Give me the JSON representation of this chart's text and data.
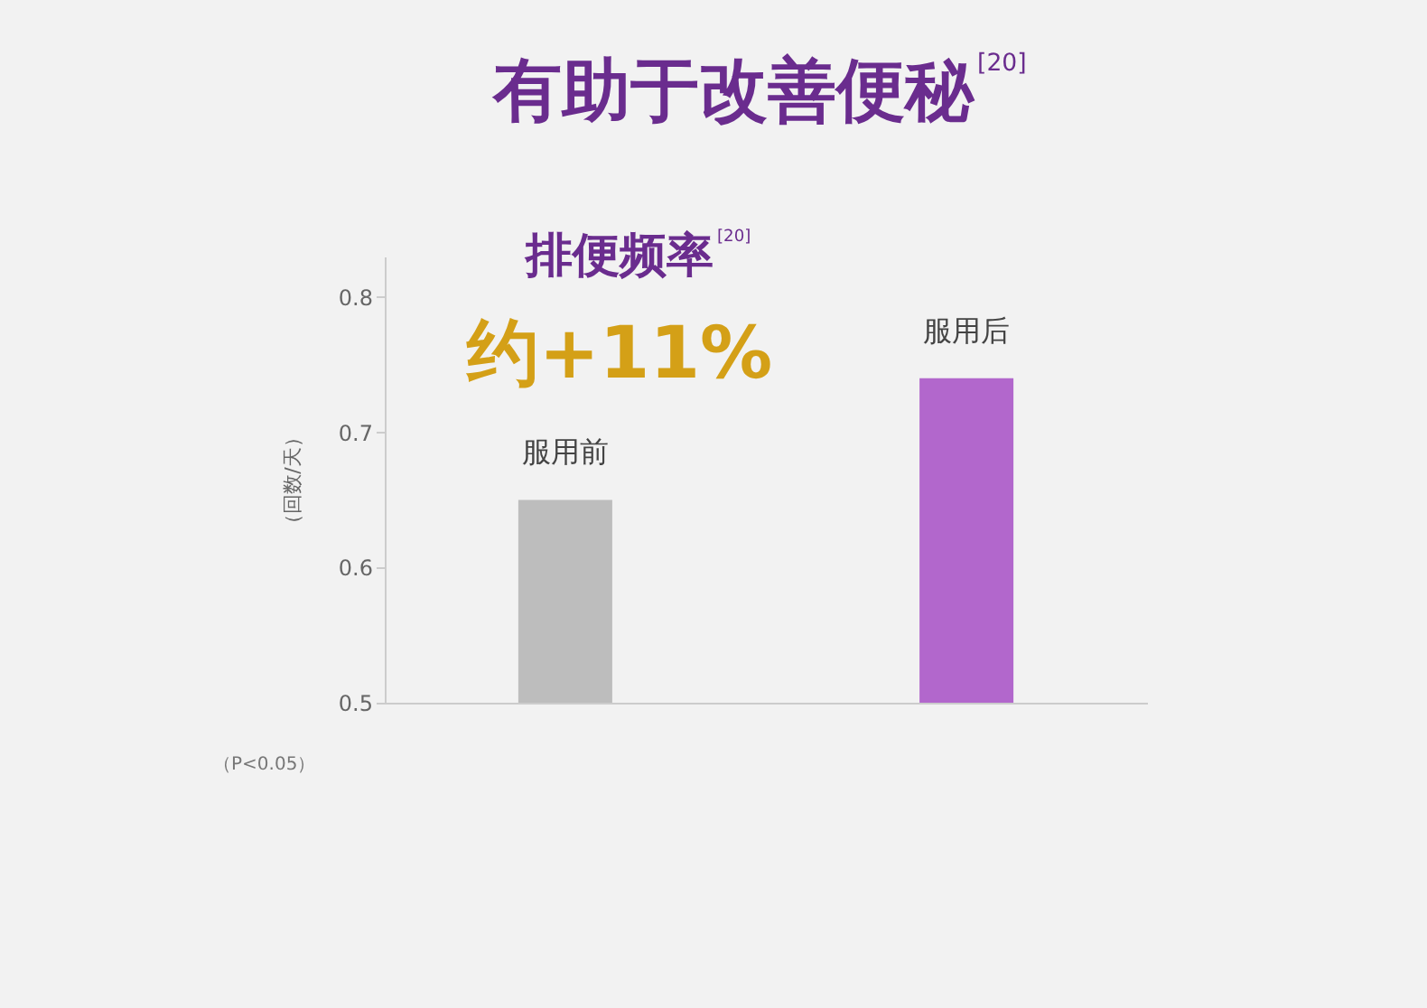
{
  "chart_data": {
    "type": "bar",
    "title": "有助于改善便秘$^{[20]}$",
    "subtitle": "排便频率$^{[20]}$",
    "ylabel": "（回数/天）",
    "categories": [
      "服用前",
      "服用后"
    ],
    "values": [
      0.65,
      0.74
    ],
    "colors": [
      "#bdbdbd",
      "#b267cc"
    ],
    "ylim": [
      0.5,
      0.83
    ],
    "yticks": [
      0.5,
      0.6,
      0.7,
      0.8
    ],
    "grid": false,
    "annotations": [
      "约+11%",
      "（P<0.05）"
    ]
  }
}
